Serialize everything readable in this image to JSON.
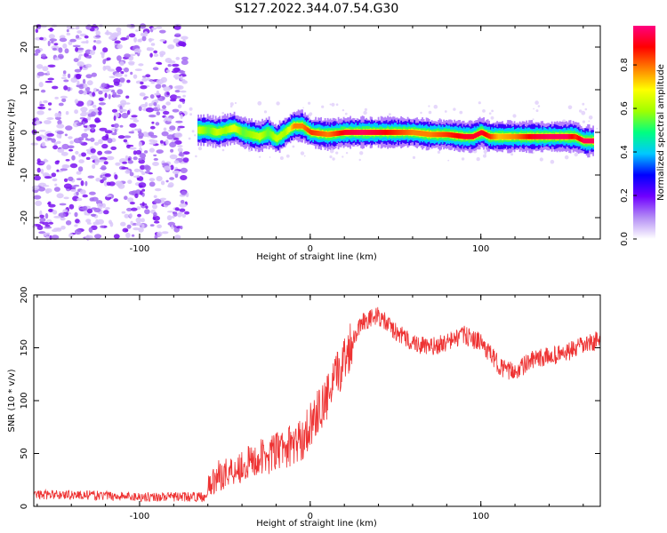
{
  "figure": {
    "title": "S127.2022.344.07.54.G30"
  },
  "chart_data": [
    {
      "type": "heatmap",
      "title": "S127.2022.344.07.54.G30",
      "xlabel": "Height of straight line (km)",
      "ylabel": "Frequency (Hz)",
      "xlim": [
        -162,
        170
      ],
      "ylim": [
        -25,
        25
      ],
      "x_ticks": [
        -100,
        0,
        100
      ],
      "y_ticks": [
        -20,
        -10,
        0,
        10,
        20
      ],
      "noise_region_x": [
        -162,
        -72
      ],
      "colorbar": {
        "label": "Normalized spectral amplitude",
        "range": [
          0.0,
          0.98
        ],
        "ticks": [
          0.0,
          0.2,
          0.4,
          0.6,
          0.8
        ],
        "tick_labels": [
          "0.0",
          "0.2",
          "0.4",
          "0.6",
          "0.8"
        ],
        "colors": [
          "#ffffff",
          "#b48ef5",
          "#7000ff",
          "#0000ff",
          "#00c8ff",
          "#00ff80",
          "#a0ff00",
          "#ffff00",
          "#ff8000",
          "#ff0000",
          "#ff0080"
        ]
      },
      "ridge": {
        "x": [
          -66,
          -60,
          -55,
          -50,
          -45,
          -40,
          -35,
          -30,
          -25,
          -20,
          -15,
          -10,
          -5,
          0,
          10,
          20,
          30,
          40,
          50,
          60,
          70,
          80,
          90,
          95,
          100,
          105,
          110,
          120,
          130,
          140,
          150,
          155,
          160,
          166
        ],
        "y": [
          0.5,
          0.5,
          0,
          0.5,
          1,
          0,
          -0.5,
          -1,
          0,
          -1.5,
          0,
          1.5,
          1.5,
          0,
          -0.5,
          0,
          0,
          0,
          0,
          0,
          -0.5,
          -0.5,
          -1,
          -1,
          0,
          -1,
          -1,
          -1,
          -1,
          -1,
          -1,
          -1,
          -2,
          -2
        ],
        "amplitude": [
          0.7,
          0.6,
          0.7,
          0.65,
          0.75,
          0.6,
          0.65,
          0.7,
          0.6,
          0.7,
          0.65,
          0.85,
          0.85,
          0.9,
          0.85,
          0.95,
          0.98,
          0.95,
          0.9,
          0.85,
          0.85,
          0.9,
          0.95,
          0.95,
          0.95,
          0.9,
          0.8,
          0.85,
          0.95,
          0.98,
          0.98,
          0.9,
          0.98,
          0.98
        ]
      }
    },
    {
      "type": "line",
      "xlabel": "Height of straight line (km)",
      "ylabel": "SNR (10 * v/v)",
      "xlim": [
        -162,
        170
      ],
      "ylim": [
        0,
        200
      ],
      "x_ticks": [
        -100,
        0,
        100
      ],
      "y_ticks": [
        0,
        50,
        100,
        150,
        200
      ],
      "color": "#ee3333",
      "trend": {
        "x": [
          -162,
          -140,
          -120,
          -100,
          -80,
          -62,
          -55,
          -45,
          -30,
          -15,
          -5,
          0,
          10,
          20,
          30,
          40,
          50,
          60,
          70,
          80,
          90,
          100,
          110,
          115,
          120,
          130,
          140,
          150,
          160,
          170
        ],
        "y": [
          11,
          11,
          10,
          9,
          9,
          9,
          28,
          35,
          45,
          55,
          62,
          78,
          102,
          140,
          175,
          180,
          165,
          155,
          150,
          155,
          162,
          155,
          135,
          128,
          128,
          138,
          142,
          145,
          152,
          158
        ]
      }
    }
  ]
}
